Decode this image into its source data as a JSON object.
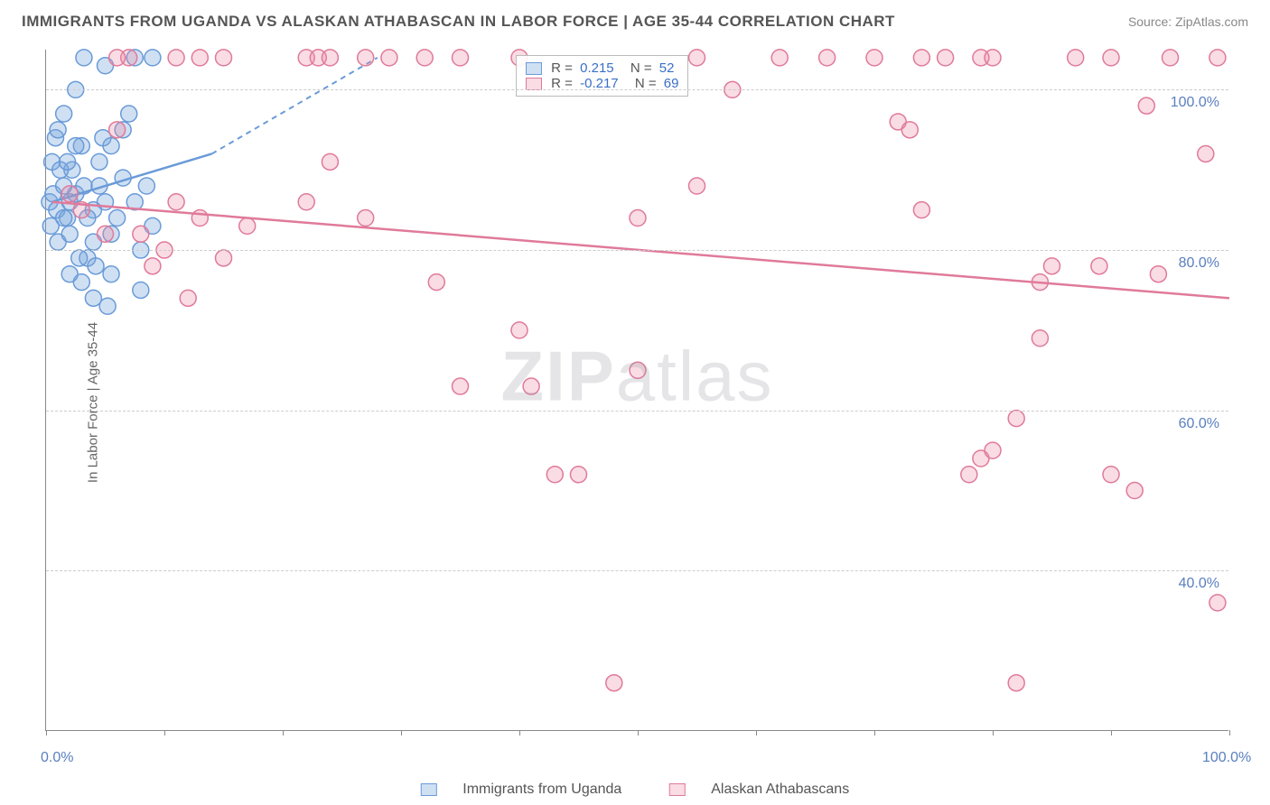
{
  "title": "IMMIGRANTS FROM UGANDA VS ALASKAN ATHABASCAN IN LABOR FORCE | AGE 35-44 CORRELATION CHART",
  "source": "Source: ZipAtlas.com",
  "y_axis_label": "In Labor Force | Age 35-44",
  "watermark_prefix": "ZIP",
  "watermark_suffix": "atlas",
  "chart": {
    "type": "scatter-correlation",
    "xlim": [
      0,
      100
    ],
    "ylim": [
      20,
      105
    ],
    "x_ticks": [
      0,
      10,
      20,
      30,
      40,
      50,
      60,
      70,
      80,
      90,
      100
    ],
    "x_tick_labels": {
      "0": "0.0%",
      "100": "100.0%"
    },
    "y_ticks": [
      40,
      60,
      80,
      100
    ],
    "y_tick_labels": {
      "40": "40.0%",
      "60": "60.0%",
      "80": "80.0%",
      "100": "100.0%"
    },
    "background_color": "#ffffff",
    "grid_color": "#cfcfcf",
    "axis_color": "#888888",
    "label_color": "#5a7fbf",
    "title_color": "#555555",
    "marker_radius": 9,
    "marker_stroke_width": 1.5,
    "series": [
      {
        "key": "uganda",
        "label": "Immigrants from Uganda",
        "color_fill": "rgba(120,165,220,0.35)",
        "color_stroke": "#6a9bd8",
        "R_label": "R =",
        "R": "0.215",
        "N_label": "N =",
        "N": "52",
        "trend_solid": {
          "x1": 0.5,
          "y1": 86,
          "x2": 14,
          "y2": 92
        },
        "trend_dashed": {
          "x1": 14,
          "y1": 92,
          "x2": 28,
          "y2": 104
        },
        "points": [
          [
            0.3,
            86
          ],
          [
            0.6,
            87
          ],
          [
            0.9,
            85
          ],
          [
            1.5,
            88
          ],
          [
            1.8,
            84
          ],
          [
            2,
            86
          ],
          [
            2.2,
            90
          ],
          [
            2.5,
            87
          ],
          [
            3,
            93
          ],
          [
            3.2,
            104
          ],
          [
            3.5,
            79
          ],
          [
            4,
            85
          ],
          [
            4,
            81
          ],
          [
            4.5,
            88
          ],
          [
            4.8,
            94
          ],
          [
            5,
            103
          ],
          [
            5,
            86
          ],
          [
            5.5,
            82
          ],
          [
            5.5,
            77
          ],
          [
            6,
            84
          ],
          [
            6.5,
            89
          ],
          [
            6.5,
            95
          ],
          [
            7,
            97
          ],
          [
            7.5,
            104
          ],
          [
            7.5,
            86
          ],
          [
            8,
            80
          ],
          [
            8,
            75
          ],
          [
            8.5,
            88
          ],
          [
            9,
            83
          ],
          [
            9,
            104
          ],
          [
            1,
            81
          ],
          [
            1.5,
            84
          ],
          [
            2,
            82
          ],
          [
            2.5,
            93
          ],
          [
            0.5,
            91
          ],
          [
            1.2,
            90
          ],
          [
            2.8,
            79
          ],
          [
            3.5,
            84
          ],
          [
            4.2,
            78
          ],
          [
            5.2,
            73
          ],
          [
            0.8,
            94
          ],
          [
            1.5,
            97
          ],
          [
            2.5,
            100
          ],
          [
            0.4,
            83
          ],
          [
            1,
            95
          ],
          [
            1.8,
            91
          ],
          [
            3.2,
            88
          ],
          [
            4.5,
            91
          ],
          [
            5.5,
            93
          ],
          [
            3,
            76
          ],
          [
            2,
            77
          ],
          [
            4,
            74
          ]
        ]
      },
      {
        "key": "athabascan",
        "label": "Alaskan Athabascans",
        "color_fill": "rgba(235,140,165,0.30)",
        "color_stroke": "#e07a9a",
        "R_label": "R =",
        "R": "-0.217",
        "N_label": "N =",
        "N": "69",
        "trend_solid": {
          "x1": 0.5,
          "y1": 86,
          "x2": 100,
          "y2": 74
        },
        "points": [
          [
            2,
            87
          ],
          [
            3,
            85
          ],
          [
            5,
            82
          ],
          [
            6,
            95
          ],
          [
            7,
            104
          ],
          [
            8,
            82
          ],
          [
            9,
            78
          ],
          [
            10,
            80
          ],
          [
            11,
            86
          ],
          [
            12,
            74
          ],
          [
            13,
            84
          ],
          [
            13,
            104
          ],
          [
            15,
            104
          ],
          [
            15,
            79
          ],
          [
            17,
            83
          ],
          [
            22,
            86
          ],
          [
            22,
            104
          ],
          [
            23,
            104
          ],
          [
            24,
            91
          ],
          [
            24,
            104
          ],
          [
            27,
            104
          ],
          [
            27,
            84
          ],
          [
            29,
            104
          ],
          [
            32,
            104
          ],
          [
            33,
            76
          ],
          [
            35,
            104
          ],
          [
            35,
            63
          ],
          [
            40,
            104
          ],
          [
            40,
            70
          ],
          [
            41,
            63
          ],
          [
            43,
            52
          ],
          [
            45,
            52
          ],
          [
            48,
            26
          ],
          [
            50,
            84
          ],
          [
            50,
            65
          ],
          [
            55,
            88
          ],
          [
            55,
            104
          ],
          [
            58,
            100
          ],
          [
            62,
            104
          ],
          [
            66,
            104
          ],
          [
            70,
            104
          ],
          [
            72,
            96
          ],
          [
            73,
            95
          ],
          [
            74,
            104
          ],
          [
            74,
            85
          ],
          [
            76,
            104
          ],
          [
            78,
            52
          ],
          [
            79,
            104
          ],
          [
            79,
            54
          ],
          [
            80,
            104
          ],
          [
            80,
            55
          ],
          [
            82,
            59
          ],
          [
            82,
            26
          ],
          [
            84,
            76
          ],
          [
            84,
            69
          ],
          [
            85,
            78
          ],
          [
            87,
            104
          ],
          [
            89,
            78
          ],
          [
            90,
            104
          ],
          [
            90,
            52
          ],
          [
            92,
            50
          ],
          [
            93,
            98
          ],
          [
            94,
            77
          ],
          [
            95,
            104
          ],
          [
            98,
            92
          ],
          [
            99,
            36
          ],
          [
            99,
            104
          ],
          [
            6,
            104
          ],
          [
            11,
            104
          ]
        ]
      }
    ],
    "legend_labels": {
      "R_color_blue": "#3a6fc7",
      "N_color": "#555"
    }
  },
  "bottom_x0": "0.0%",
  "bottom_x100": "100.0%"
}
